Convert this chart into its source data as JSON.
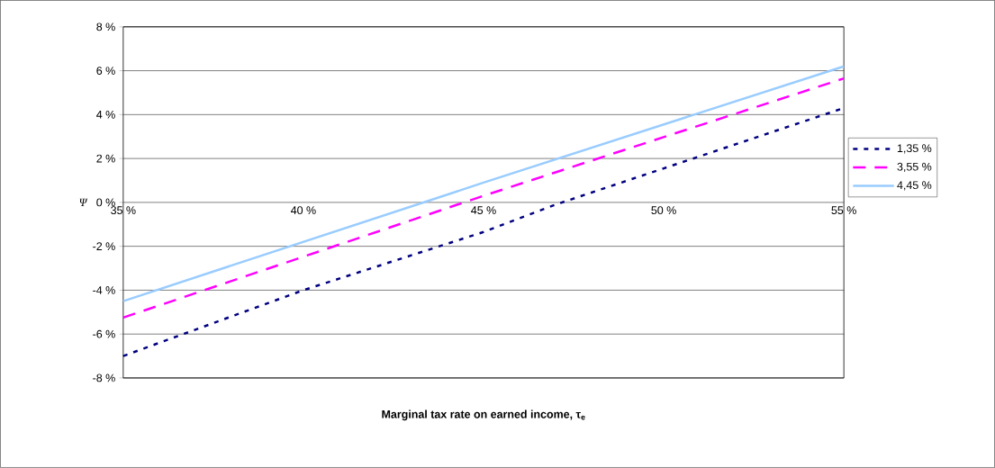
{
  "chart_data": {
    "type": "line",
    "xlabel": "Marginal tax rate on earned income, τ$_{e}$",
    "ylabel": "Ψ",
    "xlim": [
      35,
      55
    ],
    "ylim": [
      -8,
      8
    ],
    "xticks": [
      {
        "value": 35,
        "label": "35 %"
      },
      {
        "value": 40,
        "label": "40 %"
      },
      {
        "value": 45,
        "label": "45 %"
      },
      {
        "value": 50,
        "label": "50 %"
      },
      {
        "value": 55,
        "label": "55 %"
      }
    ],
    "yticks": [
      {
        "value": -8,
        "label": "-8 %"
      },
      {
        "value": -6,
        "label": "-6 %"
      },
      {
        "value": -4,
        "label": "-4 %"
      },
      {
        "value": -2,
        "label": "-2 %"
      },
      {
        "value": 0,
        "label": "0 %"
      },
      {
        "value": 2,
        "label": "2 %"
      },
      {
        "value": 4,
        "label": "4 %"
      },
      {
        "value": 6,
        "label": "6 %"
      },
      {
        "value": 8,
        "label": "8 %"
      }
    ],
    "grid": "y",
    "legend": "right",
    "series": [
      {
        "name": "1,35 %",
        "color": "#000080",
        "line_style": "dotted",
        "x": [
          35,
          40,
          45,
          47,
          50,
          55
        ],
        "values": [
          -7.0,
          -4.0,
          -1.35,
          -0.1,
          1.55,
          4.3
        ]
      },
      {
        "name": "3,55 %",
        "color": "#ff00ff",
        "line_style": "dashed",
        "x": [
          35,
          45,
          55
        ],
        "values": [
          -5.25,
          0.3,
          5.65
        ]
      },
      {
        "name": "4,45 %",
        "color": "#99ccff",
        "line_style": "solid",
        "x": [
          35,
          45,
          55
        ],
        "values": [
          -4.5,
          0.9,
          6.2
        ]
      }
    ]
  }
}
